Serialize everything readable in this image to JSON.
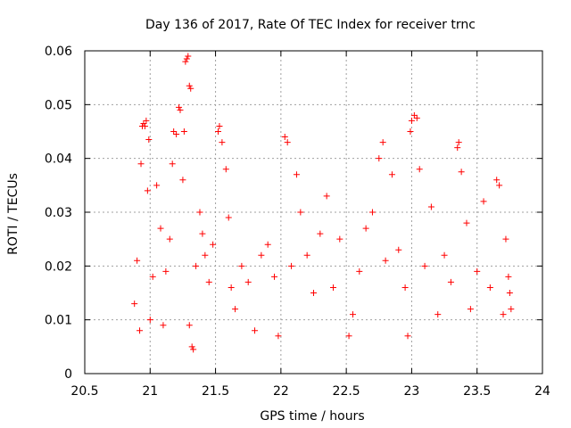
{
  "chart_data": {
    "type": "scatter",
    "title": "Day 136 of 2017, Rate Of TEC Index for receiver trnc",
    "xlabel": "GPS time / hours",
    "ylabel": "ROTI / TECUs",
    "xlim": [
      20.5,
      24
    ],
    "ylim": [
      0,
      0.06
    ],
    "xticks": [
      20.5,
      21,
      21.5,
      22,
      22.5,
      23,
      23.5,
      24
    ],
    "xtick_labels": [
      "20.5",
      "21",
      "21.5",
      "22",
      "22.5",
      "23",
      "23.5",
      "24"
    ],
    "yticks": [
      0,
      0.01,
      0.02,
      0.03,
      0.04,
      0.05,
      0.06
    ],
    "ytick_labels": [
      "0",
      "0.01",
      "0.02",
      "0.03",
      "0.04",
      "0.05",
      "0.06"
    ],
    "grid": true,
    "marker": "+",
    "color": "#ff0000",
    "x_range_of_data": [
      20.87,
      23.76
    ],
    "points": [
      [
        20.88,
        0.013
      ],
      [
        20.9,
        0.021
      ],
      [
        20.92,
        0.008
      ],
      [
        20.93,
        0.039
      ],
      [
        20.94,
        0.046
      ],
      [
        20.95,
        0.0465
      ],
      [
        20.96,
        0.046
      ],
      [
        20.97,
        0.047
      ],
      [
        20.98,
        0.034
      ],
      [
        20.99,
        0.0435
      ],
      [
        21.0,
        0.01
      ],
      [
        21.02,
        0.018
      ],
      [
        21.05,
        0.035
      ],
      [
        21.08,
        0.027
      ],
      [
        21.1,
        0.009
      ],
      [
        21.12,
        0.019
      ],
      [
        21.15,
        0.025
      ],
      [
        21.17,
        0.039
      ],
      [
        21.18,
        0.045
      ],
      [
        21.2,
        0.0445
      ],
      [
        21.22,
        0.0495
      ],
      [
        21.23,
        0.049
      ],
      [
        21.25,
        0.036
      ],
      [
        21.26,
        0.045
      ],
      [
        21.27,
        0.058
      ],
      [
        21.28,
        0.0585
      ],
      [
        21.29,
        0.059
      ],
      [
        21.3,
        0.0535
      ],
      [
        21.31,
        0.053
      ],
      [
        21.3,
        0.009
      ],
      [
        21.32,
        0.005
      ],
      [
        21.33,
        0.0045
      ],
      [
        21.35,
        0.02
      ],
      [
        21.38,
        0.03
      ],
      [
        21.4,
        0.026
      ],
      [
        21.42,
        0.022
      ],
      [
        21.45,
        0.017
      ],
      [
        21.48,
        0.024
      ],
      [
        21.52,
        0.045
      ],
      [
        21.53,
        0.046
      ],
      [
        21.55,
        0.043
      ],
      [
        21.58,
        0.038
      ],
      [
        21.6,
        0.029
      ],
      [
        21.62,
        0.016
      ],
      [
        21.65,
        0.012
      ],
      [
        21.7,
        0.02
      ],
      [
        21.75,
        0.017
      ],
      [
        21.8,
        0.008
      ],
      [
        21.85,
        0.022
      ],
      [
        21.9,
        0.024
      ],
      [
        21.95,
        0.018
      ],
      [
        21.98,
        0.007
      ],
      [
        22.03,
        0.044
      ],
      [
        22.05,
        0.043
      ],
      [
        22.08,
        0.02
      ],
      [
        22.12,
        0.037
      ],
      [
        22.15,
        0.03
      ],
      [
        22.2,
        0.022
      ],
      [
        22.25,
        0.015
      ],
      [
        22.3,
        0.026
      ],
      [
        22.35,
        0.033
      ],
      [
        22.4,
        0.016
      ],
      [
        22.45,
        0.025
      ],
      [
        22.52,
        0.007
      ],
      [
        22.55,
        0.011
      ],
      [
        22.6,
        0.019
      ],
      [
        22.65,
        0.027
      ],
      [
        22.7,
        0.03
      ],
      [
        22.75,
        0.04
      ],
      [
        22.78,
        0.043
      ],
      [
        22.8,
        0.021
      ],
      [
        22.85,
        0.037
      ],
      [
        22.9,
        0.023
      ],
      [
        22.95,
        0.016
      ],
      [
        22.97,
        0.007
      ],
      [
        22.99,
        0.045
      ],
      [
        23.0,
        0.047
      ],
      [
        23.02,
        0.048
      ],
      [
        23.04,
        0.0475
      ],
      [
        23.06,
        0.038
      ],
      [
        23.1,
        0.02
      ],
      [
        23.15,
        0.031
      ],
      [
        23.2,
        0.011
      ],
      [
        23.25,
        0.022
      ],
      [
        23.3,
        0.017
      ],
      [
        23.35,
        0.042
      ],
      [
        23.36,
        0.043
      ],
      [
        23.38,
        0.0375
      ],
      [
        23.42,
        0.028
      ],
      [
        23.45,
        0.012
      ],
      [
        23.5,
        0.019
      ],
      [
        23.55,
        0.032
      ],
      [
        23.6,
        0.016
      ],
      [
        23.65,
        0.036
      ],
      [
        23.67,
        0.035
      ],
      [
        23.7,
        0.011
      ],
      [
        23.72,
        0.025
      ],
      [
        23.74,
        0.018
      ],
      [
        23.75,
        0.015
      ],
      [
        23.76,
        0.012
      ]
    ]
  }
}
